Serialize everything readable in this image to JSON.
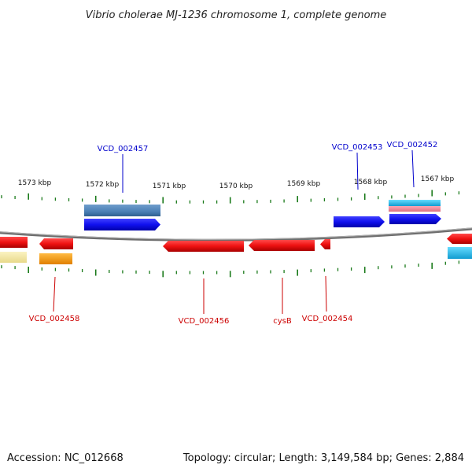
{
  "title": "Vibrio cholerae MJ-1236 chromosome 1, complete genome",
  "footer": {
    "accession": "Accession: NC_012668",
    "summary": "Topology: circular; Length: 3,149,584 bp; Genes: 2,884"
  },
  "kbp_labels": [
    "1573 kbp",
    "1572 kbp",
    "1571 kbp",
    "1570 kbp",
    "1569 kbp",
    "1568 kbp",
    "1567 kbp"
  ],
  "genes_top": [
    {
      "name": "VCD_002457",
      "color": "#0000cc"
    },
    {
      "name": "VCD_002453",
      "color": "#0000cc"
    },
    {
      "name": "VCD_002452",
      "color": "#0000cc"
    }
  ],
  "genes_bottom": [
    {
      "name": "VCD_002458",
      "color": "#cc0000"
    },
    {
      "name": "VCD_002456",
      "color": "#cc0000"
    },
    {
      "name": "cysB",
      "color": "#cc0000"
    },
    {
      "name": "VCD_002454",
      "color": "#cc0000"
    }
  ],
  "colors": {
    "forward_cds": "#1010ee",
    "reverse_cds": "#ee1111",
    "steelblue_feature": "#4a7fb5",
    "cyan_feature": "#22bbee",
    "pink_feature": "#ee8899",
    "orange_feature": "#ff9900",
    "lightyellow_feature": "#f2e6a0",
    "tick": "#1a7a1a",
    "backbone": "#888888"
  }
}
